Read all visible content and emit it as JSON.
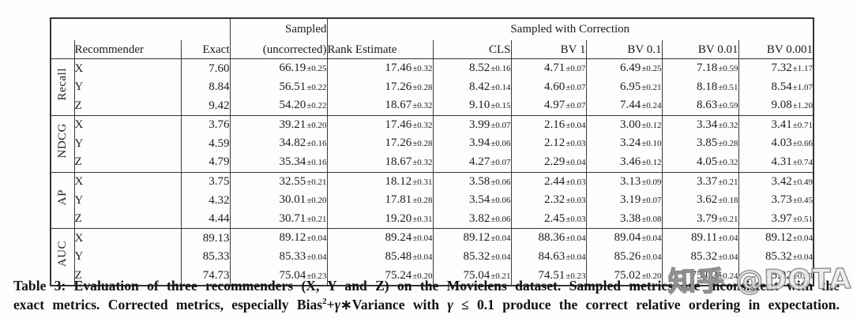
{
  "table": {
    "header": {
      "recommender": "Recommender",
      "exact": "Exact",
      "sampled_line1": "Sampled",
      "sampled_line2": "(uncorrected)",
      "correction_group": "Sampled with Correction",
      "correction_cols": [
        "Rank Estimate",
        "CLS",
        "BV 1",
        "BV 0.1",
        "BV 0.01",
        "BV 0.001"
      ]
    },
    "groups": [
      {
        "metric": "Recall",
        "rows": [
          {
            "rec": "X",
            "exact": "7.60",
            "cells": [
              [
                "66.19",
                "±0.25"
              ],
              [
                "17.46",
                "±0.32"
              ],
              [
                "8.52",
                "±0.16"
              ],
              [
                "4.71",
                "±0.07"
              ],
              [
                "6.49",
                "±0.25"
              ],
              [
                "7.18",
                "±0.59"
              ],
              [
                "7.32",
                "±1.17"
              ]
            ]
          },
          {
            "rec": "Y",
            "exact": "8.84",
            "cells": [
              [
                "56.51",
                "±0.22"
              ],
              [
                "17.26",
                "±0.28"
              ],
              [
                "8.42",
                "±0.14"
              ],
              [
                "4.60",
                "±0.07"
              ],
              [
                "6.95",
                "±0.21"
              ],
              [
                "8.18",
                "±0.51"
              ],
              [
                "8.54",
                "±1.07"
              ]
            ]
          },
          {
            "rec": "Z",
            "exact": "9.42",
            "cells": [
              [
                "54.20",
                "±0.22"
              ],
              [
                "18.67",
                "±0.32"
              ],
              [
                "9.10",
                "±0.15"
              ],
              [
                "4.97",
                "±0.07"
              ],
              [
                "7.44",
                "±0.24"
              ],
              [
                "8.63",
                "±0.59"
              ],
              [
                "9.08",
                "±1.20"
              ]
            ]
          }
        ]
      },
      {
        "metric": "NDCG",
        "rows": [
          {
            "rec": "X",
            "exact": "3.76",
            "cells": [
              [
                "39.21",
                "±0.20"
              ],
              [
                "17.46",
                "±0.32"
              ],
              [
                "3.99",
                "±0.07"
              ],
              [
                "2.16",
                "±0.04"
              ],
              [
                "3.00",
                "±0.12"
              ],
              [
                "3.34",
                "±0.32"
              ],
              [
                "3.41",
                "±0.71"
              ]
            ]
          },
          {
            "rec": "Y",
            "exact": "4.59",
            "cells": [
              [
                "34.82",
                "±0.16"
              ],
              [
                "17.26",
                "±0.28"
              ],
              [
                "3.94",
                "±0.06"
              ],
              [
                "2.12",
                "±0.03"
              ],
              [
                "3.24",
                "±0.10"
              ],
              [
                "3.85",
                "±0.28"
              ],
              [
                "4.03",
                "±0.66"
              ]
            ]
          },
          {
            "rec": "Z",
            "exact": "4.79",
            "cells": [
              [
                "35.34",
                "±0.16"
              ],
              [
                "18.67",
                "±0.32"
              ],
              [
                "4.27",
                "±0.07"
              ],
              [
                "2.29",
                "±0.04"
              ],
              [
                "3.46",
                "±0.12"
              ],
              [
                "4.05",
                "±0.32"
              ],
              [
                "4.31",
                "±0.74"
              ]
            ]
          }
        ]
      },
      {
        "metric": "AP",
        "rows": [
          {
            "rec": "X",
            "exact": "3.75",
            "cells": [
              [
                "32.55",
                "±0.21"
              ],
              [
                "18.12",
                "±0.31"
              ],
              [
                "3.58",
                "±0.06"
              ],
              [
                "2.44",
                "±0.03"
              ],
              [
                "3.13",
                "±0.09"
              ],
              [
                "3.37",
                "±0.21"
              ],
              [
                "3.42",
                "±0.49"
              ]
            ]
          },
          {
            "rec": "Y",
            "exact": "4.32",
            "cells": [
              [
                "30.01",
                "±0.20"
              ],
              [
                "17.81",
                "±0.28"
              ],
              [
                "3.54",
                "±0.06"
              ],
              [
                "2.32",
                "±0.03"
              ],
              [
                "3.19",
                "±0.07"
              ],
              [
                "3.62",
                "±0.18"
              ],
              [
                "3.73",
                "±0.45"
              ]
            ]
          },
          {
            "rec": "Z",
            "exact": "4.44",
            "cells": [
              [
                "30.71",
                "±0.21"
              ],
              [
                "19.20",
                "±0.31"
              ],
              [
                "3.82",
                "±0.06"
              ],
              [
                "2.45",
                "±0.03"
              ],
              [
                "3.38",
                "±0.08"
              ],
              [
                "3.79",
                "±0.21"
              ],
              [
                "3.97",
                "±0.51"
              ]
            ]
          }
        ]
      },
      {
        "metric": "AUC",
        "rows": [
          {
            "rec": "X",
            "exact": "89.13",
            "cells": [
              [
                "89.12",
                "±0.04"
              ],
              [
                "89.24",
                "±0.04"
              ],
              [
                "89.12",
                "±0.04"
              ],
              [
                "88.36",
                "±0.04"
              ],
              [
                "89.04",
                "±0.04"
              ],
              [
                "89.11",
                "±0.04"
              ],
              [
                "89.12",
                "±0.04"
              ]
            ]
          },
          {
            "rec": "Y",
            "exact": "85.33",
            "cells": [
              [
                "85.33",
                "±0.04"
              ],
              [
                "85.48",
                "±0.04"
              ],
              [
                "85.32",
                "±0.04"
              ],
              [
                "84.63",
                "±0.04"
              ],
              [
                "85.26",
                "±0.04"
              ],
              [
                "85.32",
                "±0.04"
              ],
              [
                "85.32",
                "±0.04"
              ]
            ]
          },
          {
            "rec": "Z",
            "exact": "74.73",
            "cells": [
              [
                "75.04",
                "±0.23"
              ],
              [
                "75.24",
                "±0.20"
              ],
              [
                "75.04",
                "±0.21"
              ],
              [
                "74.51",
                "±0.23"
              ],
              [
                "75.02",
                "±0.20"
              ],
              [
                "75.02",
                "±0.24"
              ],
              [
                "75.02",
                "±0.23"
              ]
            ]
          }
        ]
      }
    ]
  },
  "caption": {
    "line1": "Table 3: Evaluation of three recommenders (X, Y and Z) on the Movielens dataset. Sampled metrics are inconsistent with the",
    "line2_pre": "exact metrics. Corrected metrics, especially Bias",
    "line2_sup": "2",
    "line2_plus": "+",
    "line2_gamma1": "γ",
    "line2_mid": "∗Variance with ",
    "line2_gamma2": "γ",
    "line2_post": " ≤ 0.1 produce the correct relative ordering in expectation."
  },
  "watermark": "知乎 @DOTA"
}
